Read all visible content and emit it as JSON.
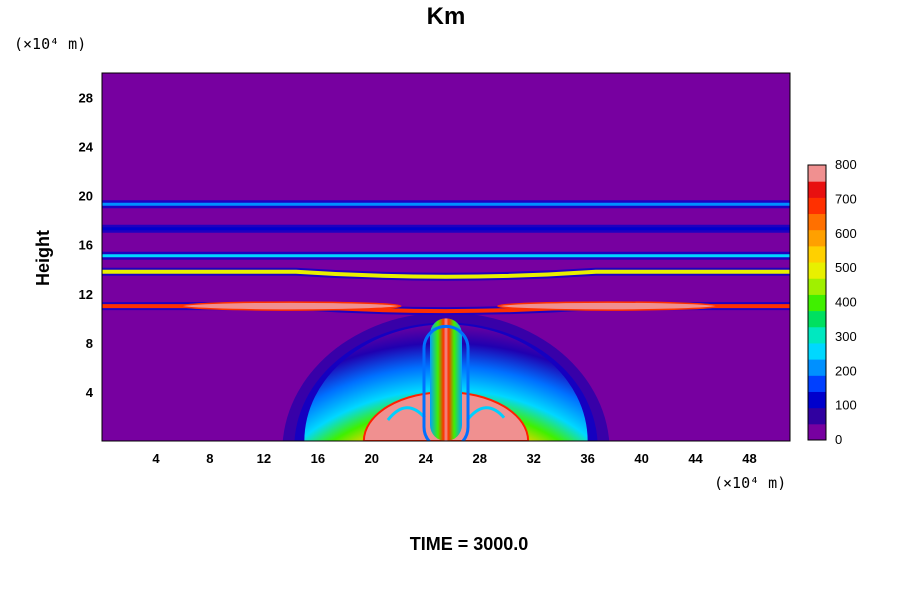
{
  "chart_data": {
    "type": "heatmap",
    "title": "Km",
    "ylabel": "Height",
    "xunit": "(×10⁴ m)",
    "yunit": "(×10⁴ m)",
    "footer": "TIME = 3000.0",
    "xlim": [
      0,
      51
    ],
    "ylim": [
      0,
      30
    ],
    "xticks": [
      "4",
      "8",
      "12",
      "16",
      "20",
      "24",
      "28",
      "32",
      "36",
      "40",
      "44",
      "48"
    ],
    "yticks": [
      "4",
      "8",
      "12",
      "16",
      "20",
      "24",
      "28"
    ],
    "colorbar": {
      "min": 0,
      "max": 800,
      "ticks": [
        "0",
        "100",
        "200",
        "300",
        "400",
        "500",
        "600",
        "700",
        "800"
      ],
      "colors": [
        "#7700a0",
        "#3000a0",
        "#0000cc",
        "#0040ff",
        "#0090ff",
        "#00d8ff",
        "#00e8c0",
        "#00e060",
        "#40f000",
        "#a0f000",
        "#e8f000",
        "#ffd000",
        "#ffa000",
        "#ff7000",
        "#ff3000",
        "#e81010",
        "#f09090"
      ]
    },
    "features": [
      {
        "kind": "background",
        "value": 0
      },
      {
        "kind": "layer",
        "y": 19.3,
        "value": 200
      },
      {
        "kind": "layer",
        "y": 17.3,
        "value": 100
      },
      {
        "kind": "layer",
        "y": 15.1,
        "value": 250
      },
      {
        "kind": "layer",
        "y": 13.8,
        "value": 500
      },
      {
        "kind": "layer",
        "y": 11.0,
        "value": 700
      },
      {
        "kind": "dome",
        "x_center": 25.5,
        "half_width": 10.5,
        "height": 9.5,
        "peak_value": 800
      },
      {
        "kind": "plume",
        "x_center": 25.5,
        "top": 10.0,
        "value": 800
      }
    ]
  },
  "texts": {
    "title": "Km",
    "ylabel": "Height",
    "y_unit": "(×10⁴ m)",
    "x_unit": "(×10⁴ m)",
    "footer": "TIME = 3000.0"
  }
}
